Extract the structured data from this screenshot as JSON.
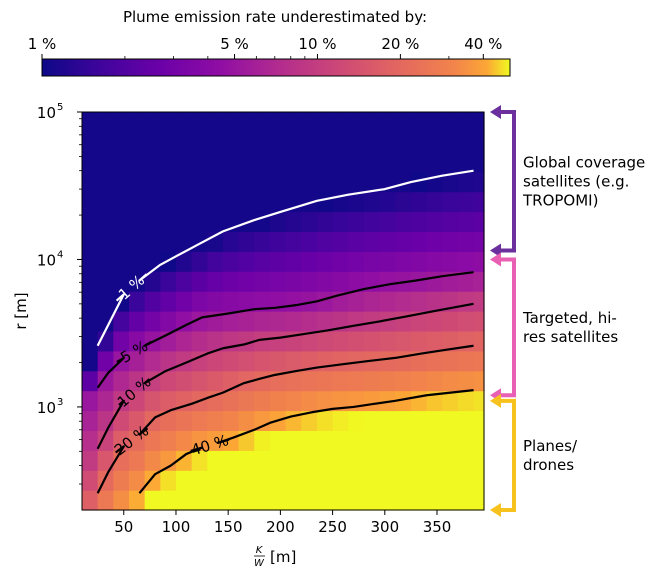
{
  "chart_data": {
    "type": "heatmap",
    "colorbar": {
      "title": "Plume emission rate underestimated by:",
      "ticks": [
        {
          "label": "1 %",
          "value": 1
        },
        {
          "label": "5 %",
          "value": 5
        },
        {
          "label": "10 %",
          "value": 10
        },
        {
          "label": "20 %",
          "value": 20
        },
        {
          "label": "40 %",
          "value": 40
        }
      ],
      "minor_ticks": [
        2,
        3,
        4,
        6,
        7,
        8,
        9,
        30
      ],
      "range": [
        1,
        50
      ],
      "scale": "log",
      "colormap": "plasma"
    },
    "xlabel": "K/W [m]",
    "xlabel_parts": {
      "numerator": "K",
      "denominator": "W",
      "unit": "[m]"
    },
    "ylabel": "r [m]",
    "xlim": [
      10,
      395
    ],
    "ylim": [
      200,
      100000
    ],
    "yscale": "log",
    "xticks": [
      {
        "value": 50,
        "label": "50"
      },
      {
        "value": 100,
        "label": "100"
      },
      {
        "value": 150,
        "label": "150"
      },
      {
        "value": 200,
        "label": "200"
      },
      {
        "value": 250,
        "label": "250"
      },
      {
        "value": 300,
        "label": "300"
      },
      {
        "value": 350,
        "label": "350"
      }
    ],
    "yticks": [
      {
        "value": 1000,
        "base": "10",
        "exp": "3"
      },
      {
        "value": 10000,
        "base": "10",
        "exp": "4"
      },
      {
        "value": 100000,
        "base": "10",
        "exp": "5"
      }
    ],
    "grid": false,
    "contours": [
      {
        "label": "1 %",
        "level": 1,
        "color": "#ffffff",
        "label_at": 1,
        "points": [
          [
            25,
            2600
          ],
          [
            50,
            5800
          ],
          [
            65,
            7200
          ],
          [
            85,
            9200
          ],
          [
            100,
            10500
          ],
          [
            120,
            12500
          ],
          [
            145,
            15500
          ],
          [
            175,
            18500
          ],
          [
            200,
            21000
          ],
          [
            235,
            25000
          ],
          [
            265,
            27500
          ],
          [
            300,
            30000
          ],
          [
            325,
            33500
          ],
          [
            355,
            37000
          ],
          [
            385,
            40000
          ]
        ]
      },
      {
        "label": "5 %",
        "level": 5,
        "color": "#000000",
        "label_at": 2,
        "points": [
          [
            25,
            1350
          ],
          [
            35,
            1700
          ],
          [
            50,
            2150
          ],
          [
            70,
            2600
          ],
          [
            90,
            3050
          ],
          [
            110,
            3600
          ],
          [
            125,
            4050
          ],
          [
            150,
            4300
          ],
          [
            175,
            4600
          ],
          [
            195,
            4700
          ],
          [
            215,
            4900
          ],
          [
            235,
            5200
          ],
          [
            255,
            5700
          ],
          [
            280,
            6300
          ],
          [
            305,
            6800
          ],
          [
            330,
            7200
          ],
          [
            355,
            7700
          ],
          [
            385,
            8200
          ]
        ]
      },
      {
        "label": "10 %",
        "level": 10,
        "color": "#000000",
        "label_at": 2,
        "points": [
          [
            25,
            520
          ],
          [
            35,
            720
          ],
          [
            50,
            1100
          ],
          [
            70,
            1450
          ],
          [
            90,
            1750
          ],
          [
            110,
            2000
          ],
          [
            130,
            2300
          ],
          [
            145,
            2500
          ],
          [
            165,
            2650
          ],
          [
            180,
            2850
          ],
          [
            200,
            2950
          ],
          [
            220,
            3100
          ],
          [
            245,
            3300
          ],
          [
            270,
            3550
          ],
          [
            295,
            3800
          ],
          [
            320,
            4100
          ],
          [
            350,
            4500
          ],
          [
            385,
            5000
          ]
        ]
      },
      {
        "label": "20 %",
        "level": 20,
        "color": "#000000",
        "label_at": 2,
        "points": [
          [
            25,
            260
          ],
          [
            35,
            360
          ],
          [
            50,
            540
          ],
          [
            65,
            650
          ],
          [
            80,
            850
          ],
          [
            95,
            950
          ],
          [
            115,
            1050
          ],
          [
            130,
            1150
          ],
          [
            145,
            1250
          ],
          [
            165,
            1450
          ],
          [
            180,
            1550
          ],
          [
            195,
            1650
          ],
          [
            215,
            1750
          ],
          [
            235,
            1850
          ],
          [
            260,
            1950
          ],
          [
            285,
            2050
          ],
          [
            310,
            2150
          ],
          [
            335,
            2300
          ],
          [
            360,
            2450
          ],
          [
            385,
            2600
          ]
        ]
      },
      {
        "label": "40 %",
        "level": 40,
        "color": "#000000",
        "label_at": 4,
        "points": [
          [
            65,
            260
          ],
          [
            80,
            350
          ],
          [
            95,
            400
          ],
          [
            110,
            480
          ],
          [
            125,
            530
          ],
          [
            140,
            570
          ],
          [
            155,
            620
          ],
          [
            175,
            700
          ],
          [
            190,
            780
          ],
          [
            210,
            860
          ],
          [
            230,
            920
          ],
          [
            250,
            970
          ],
          [
            270,
            1000
          ],
          [
            290,
            1050
          ],
          [
            310,
            1100
          ],
          [
            340,
            1200
          ],
          [
            385,
            1300
          ]
        ]
      }
    ],
    "annotations": [
      {
        "label": "Global coverage satellites (e.g. TROPOMI)",
        "lines": [
          "Global coverage",
          "satellites (e.g.",
          "TROPOMI)"
        ],
        "range": [
          11500,
          100000
        ],
        "color": "#6b2f9e"
      },
      {
        "label": "Targeted, hi-res satellites",
        "lines": [
          "Targeted, hi-",
          "res satellites"
        ],
        "range": [
          1200,
          10000
        ],
        "color": "#e85fb3"
      },
      {
        "label": "Planes/drones",
        "lines": [
          "Planes/",
          "drones"
        ],
        "range": [
          200,
          1100
        ],
        "color": "#f7c21d"
      }
    ]
  }
}
